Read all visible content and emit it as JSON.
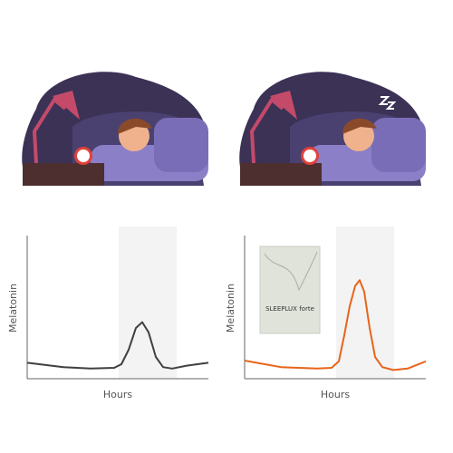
{
  "chart_data": [
    {
      "type": "line",
      "y_label": "Melatonin",
      "x_label": "Hours",
      "xlim": [
        0,
        100
      ],
      "ylim": [
        0,
        100
      ],
      "highlight_x": [
        50.5,
        82.5
      ],
      "series": [
        {
          "color": "#404040",
          "x": [
            0,
            20,
            35,
            48,
            52,
            56,
            60,
            63.5,
            67,
            71,
            75,
            80,
            88,
            100
          ],
          "values": [
            11,
            8,
            7,
            7.5,
            10,
            20,
            35,
            39,
            32,
            15,
            8,
            7,
            9,
            11
          ]
        }
      ]
    },
    {
      "type": "line",
      "y_label": "Melatonin",
      "x_label": "Hours",
      "xlim": [
        0,
        100
      ],
      "ylim": [
        0,
        100
      ],
      "highlight_x": [
        50.5,
        82.5
      ],
      "series": [
        {
          "color": "#e8641b",
          "x": [
            0,
            20,
            40,
            48,
            52,
            55,
            58,
            61,
            63.5,
            66,
            69,
            72,
            76,
            82,
            90,
            100
          ],
          "values": [
            12.5,
            8,
            7,
            7.5,
            12,
            30,
            50,
            64,
            68,
            60,
            35,
            15,
            8,
            6,
            7,
            12
          ]
        }
      ]
    }
  ],
  "product": {
    "name": "SLEEPLUX forte"
  }
}
